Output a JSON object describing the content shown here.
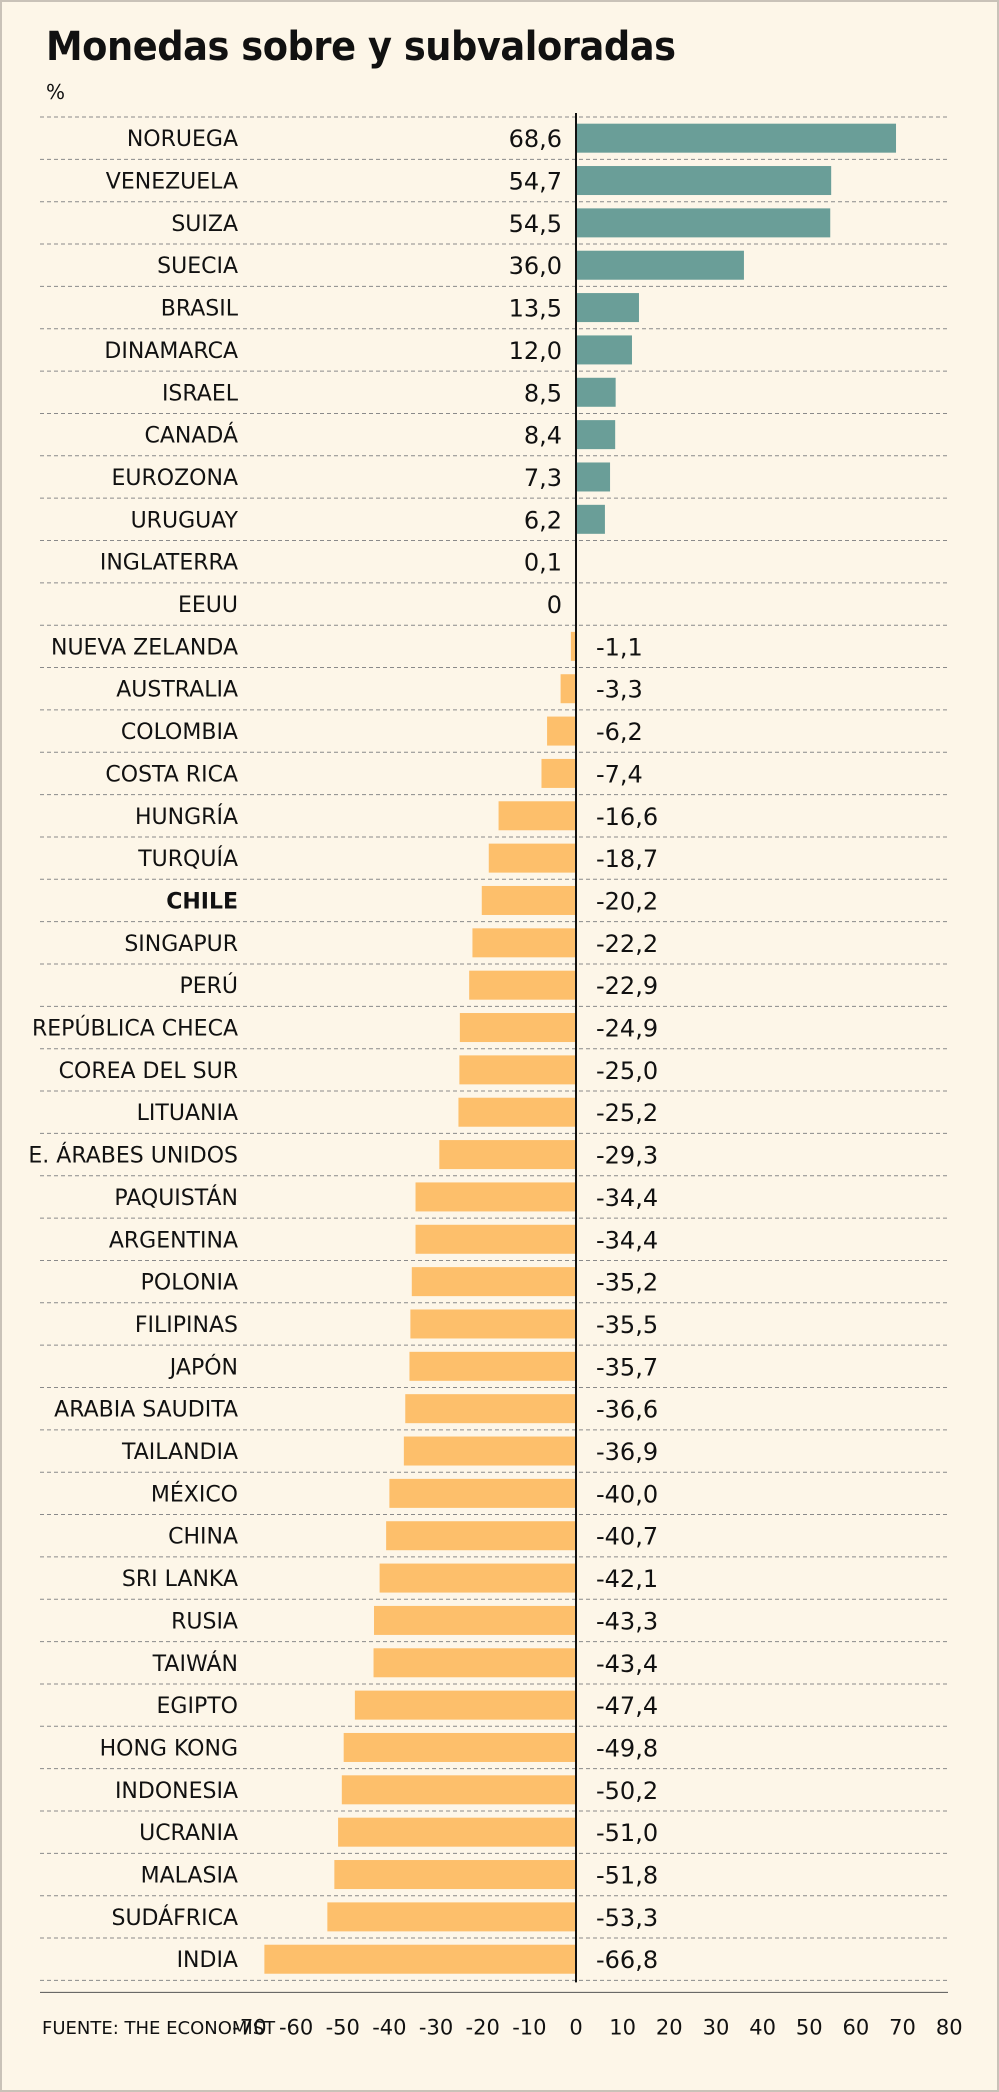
{
  "title": "Monedas sobre y subvaloradas",
  "unit": "%",
  "source": "FUENTE: THE ECONOMIST",
  "chart_data": {
    "type": "bar",
    "orientation": "horizontal",
    "title": "Monedas sobre y subvaloradas",
    "ylabel": "%",
    "xlim": [
      -70,
      80
    ],
    "xticks": [
      "-70",
      "-60",
      "-50",
      "-40",
      "-30",
      "-20",
      "-10",
      "0",
      "10",
      "20",
      "30",
      "40",
      "50",
      "60",
      "70",
      "80"
    ],
    "grid": "horizontal dashed",
    "colors": {
      "positive": "#6a9e98",
      "negative": "#fdbf6b"
    },
    "highlight": "CHILE",
    "categories": [
      "NORUEGA",
      "VENEZUELA",
      "SUIZA",
      "SUECIA",
      "BRASIL",
      "DINAMARCA",
      "ISRAEL",
      "CANADÁ",
      "EUROZONA",
      "URUGUAY",
      "INGLATERRA",
      "EEUU",
      "NUEVA ZELANDA",
      "AUSTRALIA",
      "COLOMBIA",
      "COSTA RICA",
      "HUNGRÍA",
      "TURQUÍA",
      "CHILE",
      "SINGAPUR",
      "PERÚ",
      "REPÚBLICA CHECA",
      "COREA DEL SUR",
      "LITUANIA",
      "E. ÁRABES UNIDOS",
      "PAQUISTÁN",
      "ARGENTINA",
      "POLONIA",
      "FILIPINAS",
      "JAPÓN",
      "ARABIA SAUDITA",
      "TAILANDIA",
      "MÉXICO",
      "CHINA",
      "SRI LANKA",
      "RUSIA",
      "TAIWÁN",
      "EGIPTO",
      "HONG KONG",
      "INDONESIA",
      "UCRANIA",
      "MALASIA",
      "SUDÁFRICA",
      "INDIA"
    ],
    "values": [
      68.6,
      54.7,
      54.5,
      36.0,
      13.5,
      12.0,
      8.5,
      8.4,
      7.3,
      6.2,
      0.1,
      0,
      -1.1,
      -3.3,
      -6.2,
      -7.4,
      -16.6,
      -18.7,
      -20.2,
      -22.2,
      -22.9,
      -24.9,
      -25.0,
      -25.2,
      -29.3,
      -34.4,
      -34.4,
      -35.2,
      -35.5,
      -35.7,
      -36.6,
      -36.9,
      -40.0,
      -40.7,
      -42.1,
      -43.3,
      -43.4,
      -47.4,
      -49.8,
      -50.2,
      -51.0,
      -51.8,
      -53.3,
      -66.8
    ],
    "value_labels": [
      "68,6",
      "54,7",
      "54,5",
      "36,0",
      "13,5",
      "12,0",
      "8,5",
      "8,4",
      "7,3",
      "6,2",
      "0,1",
      "0",
      "-1,1",
      "-3,3",
      "-6,2",
      "-7,4",
      "-16,6",
      "-18,7",
      "-20,2",
      "-22,2",
      "-22,9",
      "-24,9",
      "-25,0",
      "-25,2",
      "-29,3",
      "-34,4",
      "-34,4",
      "-35,2",
      "-35,5",
      "-35,7",
      "-36,6",
      "-36,9",
      "-40,0",
      "-40,7",
      "-42,1",
      "-43,3",
      "-43,4",
      "-47,4",
      "-49,8",
      "-50,2",
      "-51,0",
      "-51,8",
      "-53,3",
      "-66,8"
    ]
  }
}
